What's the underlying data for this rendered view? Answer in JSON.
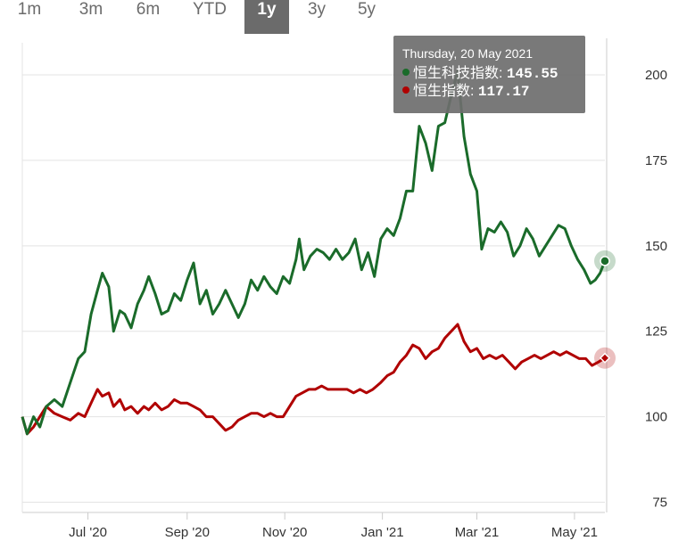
{
  "range_selector": {
    "buttons": [
      "1m",
      "3m",
      "6m",
      "YTD",
      "1y",
      "3y",
      "5y"
    ],
    "active": "1y"
  },
  "tooltip": {
    "date": "Thursday, 20 May 2021",
    "rows": [
      {
        "label": "恒生科技指数",
        "value": "145.55",
        "color": "#1a6b2a"
      },
      {
        "label": "恒生指数",
        "value": "117.17",
        "color": "#b00000"
      }
    ]
  },
  "chart_data": {
    "type": "line",
    "title": "",
    "xlabel": "",
    "ylabel": "",
    "ylim": [
      72,
      212
    ],
    "y_ticks": [
      75,
      100,
      125,
      150,
      175,
      200
    ],
    "x_ticks": [
      {
        "label": "Jul '20",
        "date": "2020-07-01"
      },
      {
        "label": "Sep '20",
        "date": "2020-09-01"
      },
      {
        "label": "Nov '20",
        "date": "2020-11-01"
      },
      {
        "label": "Jan '21",
        "date": "2021-01-01"
      },
      {
        "label": "Mar '21",
        "date": "2021-03-01"
      },
      {
        "label": "May '21",
        "date": "2021-05-01"
      }
    ],
    "grid": "horizontal",
    "series": [
      {
        "name": "恒生科技指数",
        "color": "#1a6b2a",
        "points": [
          [
            "2020-05-21",
            100
          ],
          [
            "2020-05-24",
            95
          ],
          [
            "2020-05-28",
            100
          ],
          [
            "2020-06-01",
            97
          ],
          [
            "2020-06-05",
            103
          ],
          [
            "2020-06-10",
            105
          ],
          [
            "2020-06-15",
            103
          ],
          [
            "2020-06-20",
            110
          ],
          [
            "2020-06-25",
            117
          ],
          [
            "2020-06-29",
            119
          ],
          [
            "2020-07-03",
            130
          ],
          [
            "2020-07-07",
            137
          ],
          [
            "2020-07-10",
            142
          ],
          [
            "2020-07-14",
            138
          ],
          [
            "2020-07-17",
            125
          ],
          [
            "2020-07-21",
            131
          ],
          [
            "2020-07-24",
            130
          ],
          [
            "2020-07-28",
            126
          ],
          [
            "2020-08-01",
            133
          ],
          [
            "2020-08-05",
            137
          ],
          [
            "2020-08-08",
            141
          ],
          [
            "2020-08-12",
            136
          ],
          [
            "2020-08-16",
            130
          ],
          [
            "2020-08-20",
            131
          ],
          [
            "2020-08-24",
            136
          ],
          [
            "2020-08-28",
            134
          ],
          [
            "2020-09-01",
            140
          ],
          [
            "2020-09-05",
            145
          ],
          [
            "2020-09-09",
            133
          ],
          [
            "2020-09-13",
            137
          ],
          [
            "2020-09-17",
            130
          ],
          [
            "2020-09-21",
            133
          ],
          [
            "2020-09-25",
            137
          ],
          [
            "2020-09-29",
            133
          ],
          [
            "2020-10-03",
            129
          ],
          [
            "2020-10-07",
            133
          ],
          [
            "2020-10-11",
            140
          ],
          [
            "2020-10-15",
            137
          ],
          [
            "2020-10-19",
            141
          ],
          [
            "2020-10-23",
            138
          ],
          [
            "2020-10-27",
            136
          ],
          [
            "2020-10-31",
            141
          ],
          [
            "2020-11-04",
            139
          ],
          [
            "2020-11-08",
            146
          ],
          [
            "2020-11-10",
            152
          ],
          [
            "2020-11-13",
            143
          ],
          [
            "2020-11-17",
            147
          ],
          [
            "2020-11-21",
            149
          ],
          [
            "2020-11-25",
            148
          ],
          [
            "2020-11-29",
            146
          ],
          [
            "2020-12-03",
            149
          ],
          [
            "2020-12-07",
            146
          ],
          [
            "2020-12-11",
            148
          ],
          [
            "2020-12-15",
            152
          ],
          [
            "2020-12-19",
            143
          ],
          [
            "2020-12-23",
            148
          ],
          [
            "2020-12-27",
            141
          ],
          [
            "2020-12-31",
            152
          ],
          [
            "2021-01-04",
            155
          ],
          [
            "2021-01-08",
            153
          ],
          [
            "2021-01-12",
            158
          ],
          [
            "2021-01-16",
            166
          ],
          [
            "2021-01-20",
            166
          ],
          [
            "2021-01-24",
            185
          ],
          [
            "2021-01-28",
            180
          ],
          [
            "2021-02-01",
            172
          ],
          [
            "2021-02-05",
            185
          ],
          [
            "2021-02-09",
            186
          ],
          [
            "2021-02-13",
            194
          ],
          [
            "2021-02-17",
            201
          ],
          [
            "2021-02-21",
            182
          ],
          [
            "2021-02-25",
            171
          ],
          [
            "2021-03-01",
            166
          ],
          [
            "2021-03-04",
            149
          ],
          [
            "2021-03-08",
            155
          ],
          [
            "2021-03-12",
            154
          ],
          [
            "2021-03-16",
            157
          ],
          [
            "2021-03-20",
            154
          ],
          [
            "2021-03-24",
            147
          ],
          [
            "2021-03-28",
            150
          ],
          [
            "2021-04-01",
            155
          ],
          [
            "2021-04-05",
            152
          ],
          [
            "2021-04-09",
            147
          ],
          [
            "2021-04-13",
            150
          ],
          [
            "2021-04-17",
            153
          ],
          [
            "2021-04-21",
            156
          ],
          [
            "2021-04-25",
            155
          ],
          [
            "2021-04-29",
            150
          ],
          [
            "2021-05-03",
            146
          ],
          [
            "2021-05-07",
            143
          ],
          [
            "2021-05-11",
            139
          ],
          [
            "2021-05-14",
            140
          ],
          [
            "2021-05-17",
            142
          ],
          [
            "2021-05-20",
            145.55
          ]
        ]
      },
      {
        "name": "恒生指数",
        "color": "#b00000",
        "points": [
          [
            "2020-05-21",
            100
          ],
          [
            "2020-05-24",
            95
          ],
          [
            "2020-05-28",
            97
          ],
          [
            "2020-06-01",
            100
          ],
          [
            "2020-06-05",
            103
          ],
          [
            "2020-06-10",
            101
          ],
          [
            "2020-06-15",
            100
          ],
          [
            "2020-06-20",
            99
          ],
          [
            "2020-06-25",
            101
          ],
          [
            "2020-06-29",
            100
          ],
          [
            "2020-07-03",
            104
          ],
          [
            "2020-07-07",
            108
          ],
          [
            "2020-07-10",
            106
          ],
          [
            "2020-07-14",
            107
          ],
          [
            "2020-07-17",
            103
          ],
          [
            "2020-07-21",
            105
          ],
          [
            "2020-07-24",
            102
          ],
          [
            "2020-07-28",
            103
          ],
          [
            "2020-08-01",
            101
          ],
          [
            "2020-08-05",
            103
          ],
          [
            "2020-08-08",
            102
          ],
          [
            "2020-08-12",
            104
          ],
          [
            "2020-08-16",
            102
          ],
          [
            "2020-08-20",
            103
          ],
          [
            "2020-08-24",
            105
          ],
          [
            "2020-08-28",
            104
          ],
          [
            "2020-09-01",
            104
          ],
          [
            "2020-09-05",
            103
          ],
          [
            "2020-09-09",
            102
          ],
          [
            "2020-09-13",
            100
          ],
          [
            "2020-09-17",
            100
          ],
          [
            "2020-09-21",
            98
          ],
          [
            "2020-09-25",
            96
          ],
          [
            "2020-09-29",
            97
          ],
          [
            "2020-10-03",
            99
          ],
          [
            "2020-10-07",
            100
          ],
          [
            "2020-10-11",
            101
          ],
          [
            "2020-10-15",
            101
          ],
          [
            "2020-10-19",
            100
          ],
          [
            "2020-10-23",
            101
          ],
          [
            "2020-10-27",
            100
          ],
          [
            "2020-10-31",
            100
          ],
          [
            "2020-11-04",
            103
          ],
          [
            "2020-11-08",
            106
          ],
          [
            "2020-11-12",
            107
          ],
          [
            "2020-11-16",
            108
          ],
          [
            "2020-11-20",
            108
          ],
          [
            "2020-11-24",
            109
          ],
          [
            "2020-11-28",
            108
          ],
          [
            "2020-12-02",
            108
          ],
          [
            "2020-12-06",
            108
          ],
          [
            "2020-12-10",
            108
          ],
          [
            "2020-12-14",
            107
          ],
          [
            "2020-12-18",
            108
          ],
          [
            "2020-12-22",
            107
          ],
          [
            "2020-12-26",
            108
          ],
          [
            "2020-12-31",
            110
          ],
          [
            "2021-01-04",
            112
          ],
          [
            "2021-01-08",
            113
          ],
          [
            "2021-01-12",
            116
          ],
          [
            "2021-01-16",
            118
          ],
          [
            "2021-01-20",
            121
          ],
          [
            "2021-01-24",
            120
          ],
          [
            "2021-01-28",
            117
          ],
          [
            "2021-02-01",
            119
          ],
          [
            "2021-02-05",
            120
          ],
          [
            "2021-02-09",
            123
          ],
          [
            "2021-02-13",
            125
          ],
          [
            "2021-02-17",
            127
          ],
          [
            "2021-02-21",
            122
          ],
          [
            "2021-02-25",
            119
          ],
          [
            "2021-03-01",
            120
          ],
          [
            "2021-03-05",
            117
          ],
          [
            "2021-03-09",
            118
          ],
          [
            "2021-03-13",
            117
          ],
          [
            "2021-03-17",
            118
          ],
          [
            "2021-03-21",
            116
          ],
          [
            "2021-03-25",
            114
          ],
          [
            "2021-03-29",
            116
          ],
          [
            "2021-04-02",
            117
          ],
          [
            "2021-04-06",
            118
          ],
          [
            "2021-04-10",
            117
          ],
          [
            "2021-04-14",
            118
          ],
          [
            "2021-04-18",
            119
          ],
          [
            "2021-04-22",
            118
          ],
          [
            "2021-04-26",
            119
          ],
          [
            "2021-04-30",
            118
          ],
          [
            "2021-05-04",
            117
          ],
          [
            "2021-05-08",
            117
          ],
          [
            "2021-05-12",
            115
          ],
          [
            "2021-05-16",
            116
          ],
          [
            "2021-05-20",
            117.17
          ]
        ]
      }
    ]
  }
}
